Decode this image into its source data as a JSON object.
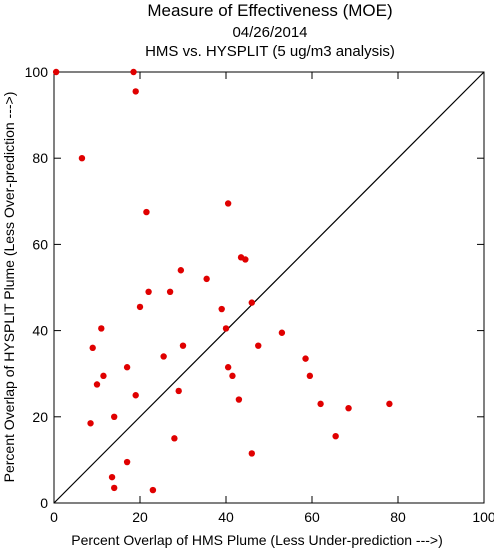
{
  "chart_data": {
    "type": "scatter",
    "title": "Measure of Effectiveness (MOE)",
    "subtitle": "04/26/2014",
    "subtitle2": "HMS vs. HYSPLIT  (5 ug/m3 analysis)",
    "xlabel": "Percent Overlap of HMS Plume (Less Under-prediction --->)",
    "ylabel": "Percent Overlap of HYSPLIT Plume (Less Over-prediction --->)",
    "xlim": [
      0,
      100
    ],
    "ylim": [
      0,
      100
    ],
    "xticks": [
      0,
      20,
      40,
      60,
      80,
      100
    ],
    "yticks": [
      0,
      20,
      40,
      60,
      80,
      100
    ],
    "x_tick_labels": [
      "0",
      "20",
      "40",
      "60",
      "80",
      "100"
    ],
    "y_tick_labels": [
      "0",
      "20",
      "40",
      "60",
      "80",
      "100"
    ],
    "grid": false,
    "reference_line": "diagonal y = x",
    "marker_color": "#e00000",
    "line_color": "#000000",
    "points": [
      [
        0.5,
        100
      ],
      [
        18.5,
        100
      ],
      [
        19,
        95.5
      ],
      [
        6.5,
        80
      ],
      [
        40.5,
        69.5
      ],
      [
        21.5,
        67.5
      ],
      [
        43.5,
        57
      ],
      [
        44.5,
        56.5
      ],
      [
        29.5,
        54
      ],
      [
        35.5,
        52
      ],
      [
        22,
        49
      ],
      [
        27,
        49
      ],
      [
        46,
        46.5
      ],
      [
        20,
        45.5
      ],
      [
        39,
        45
      ],
      [
        11,
        40.5
      ],
      [
        40,
        40.5
      ],
      [
        53,
        39.5
      ],
      [
        9,
        36
      ],
      [
        47.5,
        36.5
      ],
      [
        30,
        36.5
      ],
      [
        25.5,
        34
      ],
      [
        58.5,
        33.5
      ],
      [
        17,
        31.5
      ],
      [
        40.5,
        31.5
      ],
      [
        11.5,
        29.5
      ],
      [
        41.5,
        29.5
      ],
      [
        59.5,
        29.5
      ],
      [
        10,
        27.5
      ],
      [
        29,
        26
      ],
      [
        19,
        25
      ],
      [
        43,
        24
      ],
      [
        62,
        23
      ],
      [
        78,
        23
      ],
      [
        68.5,
        22
      ],
      [
        14,
        20
      ],
      [
        8.5,
        18.5
      ],
      [
        28,
        15
      ],
      [
        65.5,
        15.5
      ],
      [
        46,
        11.5
      ],
      [
        17,
        9.5
      ],
      [
        13.5,
        6
      ],
      [
        14,
        3.5
      ],
      [
        23,
        3
      ]
    ]
  }
}
